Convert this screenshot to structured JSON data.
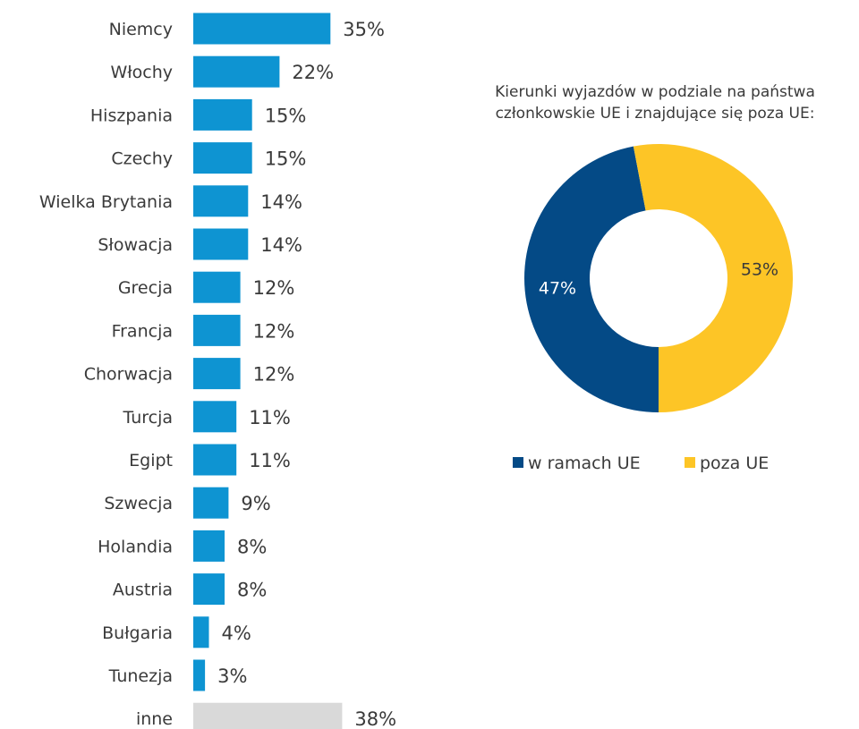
{
  "chart_data": [
    {
      "type": "bar",
      "orientation": "horizontal",
      "title": "",
      "xlabel": "",
      "ylabel": "",
      "categories": [
        "Niemcy",
        "Włochy",
        "Hiszpania",
        "Czechy",
        "Wielka Brytania",
        "Słowacja",
        "Grecja",
        "Francja",
        "Chorwacja",
        "Turcja",
        "Egipt",
        "Szwecja",
        "Holandia",
        "Austria",
        "Bułgaria",
        "Tunezja",
        "inne"
      ],
      "values": [
        35,
        22,
        15,
        15,
        14,
        14,
        12,
        12,
        12,
        11,
        11,
        9,
        8,
        8,
        4,
        3,
        38
      ],
      "value_labels": [
        "35%",
        "22%",
        "15%",
        "15%",
        "14%",
        "14%",
        "12%",
        "12%",
        "12%",
        "11%",
        "11%",
        "9%",
        "8%",
        "8%",
        "4%",
        "3%",
        "38%"
      ],
      "bar_colors": [
        "#0E94D2",
        "#0E94D2",
        "#0E94D2",
        "#0E94D2",
        "#0E94D2",
        "#0E94D2",
        "#0E94D2",
        "#0E94D2",
        "#0E94D2",
        "#0E94D2",
        "#0E94D2",
        "#0E94D2",
        "#0E94D2",
        "#0E94D2",
        "#0E94D2",
        "#0E94D2",
        "#D9D9D9"
      ],
      "unit": "%",
      "grid": false,
      "legend": "none"
    },
    {
      "type": "pie",
      "variant": "donut",
      "title": "Kierunki wyjazdów w podziale na państwa członkowskie UE i znajdujące się poza UE:",
      "title_lines": [
        "Kierunki wyjazdów w podziale na państwa",
        "członkowskie UE i znajdujące się poza UE:"
      ],
      "categories": [
        "w ramach UE",
        "poza UE"
      ],
      "values": [
        47,
        53
      ],
      "value_labels": [
        "47%",
        "53%"
      ],
      "colors": [
        "#044A86",
        "#FDC526"
      ],
      "label_colors": [
        "#ffffff",
        "#3a3a3a"
      ],
      "legend": "bottom"
    }
  ]
}
